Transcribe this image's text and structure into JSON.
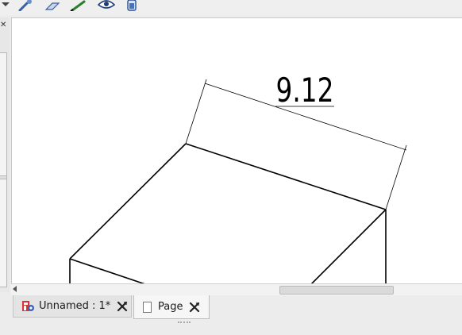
{
  "toolbar": {
    "icons": [
      "dropdown-arrow-icon",
      "brush-icon",
      "eraser-icon",
      "pencil-icon",
      "eye-icon",
      "battery-icon"
    ]
  },
  "drawing": {
    "dimension_value": "9.12",
    "line_color": "#000000",
    "background_color": "#ffffff"
  },
  "tabs": [
    {
      "label": "Unnamed : 1*",
      "icon": "freecad-document-icon",
      "close_icon": "close-x-icon"
    },
    {
      "label": "Page",
      "icon": "page-icon",
      "close_icon": "close-x-icon"
    }
  ],
  "left_panel": {
    "close_glyph": "✕"
  }
}
